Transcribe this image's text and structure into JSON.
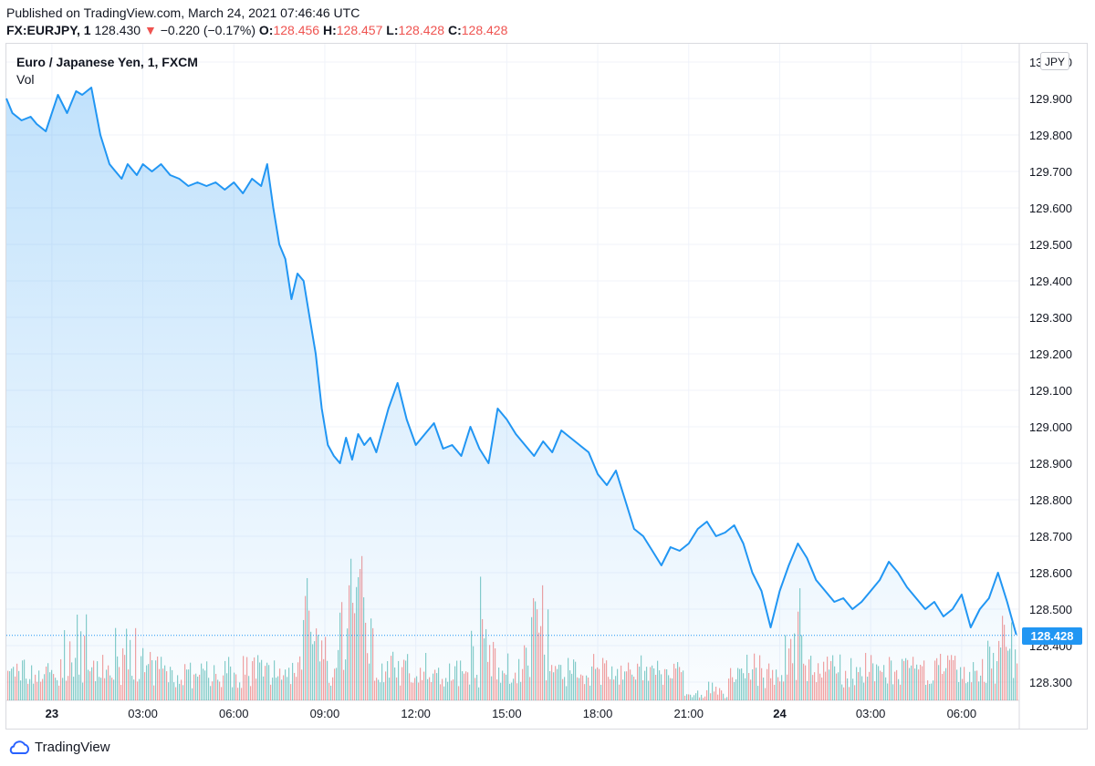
{
  "header": {
    "published": "Published on TradingView.com, March 24, 2021 07:46:46 UTC",
    "symbol": "FX:EURJPY, 1",
    "last": "128.430",
    "change_arrow": "▼",
    "change": "−0.220 (−0.17%)",
    "open_label": "O:",
    "open": "128.456",
    "high_label": "H:",
    "high": "128.457",
    "low_label": "L:",
    "low": "128.428",
    "close_label": "C:",
    "close": "128.428"
  },
  "legend": {
    "title": "Euro / Japanese Yen, 1, FXCM",
    "vol": "Vol"
  },
  "currency_button": "JPY",
  "last_price_tag": "128.428",
  "footer": {
    "brand": "TradingView"
  },
  "colors": {
    "line": "#2196f3",
    "volume_up": "#26a69a",
    "volume_down": "#ef5350",
    "grid": "#f0f3fa",
    "price_tag": "#2196f3"
  },
  "chart_data": {
    "type": "area",
    "title": "Euro / Japanese Yen, 1, FXCM",
    "ylim": [
      128.25,
      130.05
    ],
    "yticks": [
      "130.000",
      "129.900",
      "129.800",
      "129.700",
      "129.600",
      "129.500",
      "129.400",
      "129.300",
      "129.200",
      "129.100",
      "129.000",
      "128.900",
      "128.800",
      "128.700",
      "128.600",
      "128.500",
      "128.400",
      "128.300"
    ],
    "xticks": [
      "23",
      "03:00",
      "06:00",
      "09:00",
      "12:00",
      "15:00",
      "18:00",
      "21:00",
      "24",
      "03:00",
      "06:00"
    ],
    "xtick_hours": [
      0,
      3,
      6,
      9,
      12,
      15,
      18,
      21,
      24,
      27,
      30
    ],
    "x_hours_range": [
      -1.5,
      31.9
    ],
    "series": [
      {
        "x_hours": [
          -1.5,
          -1.3,
          -1.0,
          -0.7,
          -0.5,
          -0.2,
          0.2,
          0.5,
          0.8,
          1.0,
          1.3,
          1.6,
          1.9,
          2.1,
          2.3,
          2.5,
          2.8,
          3.0,
          3.3,
          3.6,
          3.9,
          4.2,
          4.5,
          4.8,
          5.1,
          5.4,
          5.7,
          6.0,
          6.3,
          6.6,
          6.9,
          7.1,
          7.3,
          7.5,
          7.7,
          7.9,
          8.1,
          8.3,
          8.5,
          8.7,
          8.9,
          9.1,
          9.3,
          9.5,
          9.7,
          9.9,
          10.1,
          10.3,
          10.5,
          10.7,
          10.9,
          11.1,
          11.4,
          11.7,
          12.0,
          12.3,
          12.6,
          12.9,
          13.2,
          13.5,
          13.8,
          14.1,
          14.4,
          14.7,
          15.0,
          15.3,
          15.6,
          15.9,
          16.2,
          16.5,
          16.8,
          17.1,
          17.4,
          17.7,
          18.0,
          18.3,
          18.6,
          18.9,
          19.2,
          19.5,
          19.8,
          20.1,
          20.4,
          20.7,
          21.0,
          21.3,
          21.6,
          21.9,
          22.2,
          22.5,
          22.8,
          23.1,
          23.4,
          23.7,
          24.0,
          24.3,
          24.6,
          24.9,
          25.2,
          25.5,
          25.8,
          26.1,
          26.4,
          26.7,
          27.0,
          27.3,
          27.6,
          27.9,
          28.2,
          28.5,
          28.8,
          29.1,
          29.4,
          29.7,
          30.0,
          30.3,
          30.6,
          30.9,
          31.2,
          31.5,
          31.8
        ],
        "values": [
          129.9,
          129.86,
          129.84,
          129.85,
          129.83,
          129.81,
          129.91,
          129.86,
          129.92,
          129.91,
          129.93,
          129.8,
          129.72,
          129.7,
          129.68,
          129.72,
          129.69,
          129.72,
          129.7,
          129.72,
          129.69,
          129.68,
          129.66,
          129.67,
          129.66,
          129.67,
          129.65,
          129.67,
          129.64,
          129.68,
          129.66,
          129.72,
          129.6,
          129.5,
          129.46,
          129.35,
          129.42,
          129.4,
          129.3,
          129.2,
          129.05,
          128.95,
          128.92,
          128.9,
          128.97,
          128.91,
          128.98,
          128.95,
          128.97,
          128.93,
          128.99,
          129.05,
          129.12,
          129.02,
          128.95,
          128.98,
          129.01,
          128.94,
          128.95,
          128.92,
          129.0,
          128.94,
          128.9,
          129.05,
          129.02,
          128.98,
          128.95,
          128.92,
          128.96,
          128.93,
          128.99,
          128.97,
          128.95,
          128.93,
          128.87,
          128.84,
          128.88,
          128.8,
          128.72,
          128.7,
          128.66,
          128.62,
          128.67,
          128.66,
          128.68,
          128.72,
          128.74,
          128.7,
          128.71,
          128.73,
          128.68,
          128.6,
          128.55,
          128.45,
          128.55,
          128.62,
          128.68,
          128.64,
          128.58,
          128.55,
          128.52,
          128.53,
          128.5,
          128.52,
          128.55,
          128.58,
          128.63,
          128.6,
          128.56,
          128.53,
          128.5,
          128.52,
          128.48,
          128.5,
          128.54,
          128.45,
          128.5,
          128.53,
          128.6,
          128.52,
          128.43
        ]
      }
    ],
    "volume": {
      "name": "Vol",
      "peak_hours": [
        0.8,
        2.5,
        8.5,
        9.8,
        10.1,
        14.2,
        16.1,
        21.7,
        24.5,
        31.3
      ],
      "peak_levels": [
        0.35,
        0.4,
        0.55,
        0.75,
        0.9,
        0.45,
        0.55,
        0.5,
        0.35,
        0.45
      ]
    },
    "last_value": 128.428
  }
}
